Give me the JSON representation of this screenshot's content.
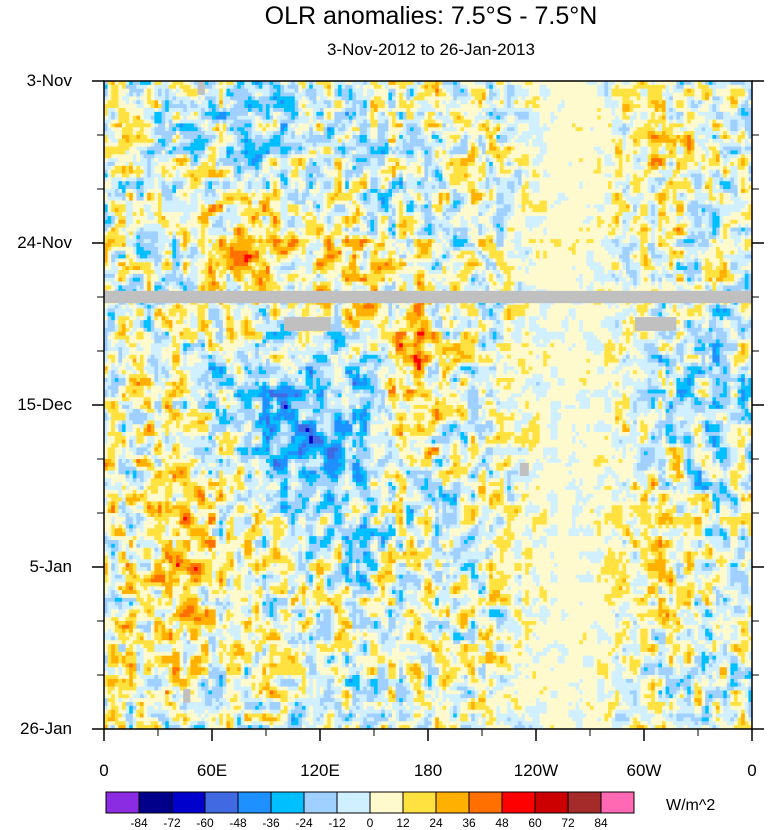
{
  "chart_data": {
    "type": "heatmap",
    "title": "OLR anomalies: 7.5°S - 7.5°N",
    "subtitle": "3-Nov-2012 to 26-Jan-2013",
    "x_tick_labels": [
      "0",
      "60E",
      "120E",
      "180",
      "120W",
      "60W",
      "0"
    ],
    "x_range_deg_east": [
      0,
      360
    ],
    "y_tick_labels": [
      "3-Nov",
      "24-Nov",
      "15-Dec",
      "5-Jan",
      "26-Jan"
    ],
    "y_range_days": [
      0,
      84
    ],
    "color_levels": [
      -84,
      -72,
      -60,
      -48,
      -36,
      -24,
      -12,
      0,
      12,
      24,
      36,
      48,
      60,
      72,
      84
    ],
    "color_level_labels": [
      "-84",
      "-72",
      "-60",
      "-48",
      "-36",
      "-24",
      "-12",
      "0",
      "12",
      "24",
      "36",
      "48",
      "60",
      "72",
      "84"
    ],
    "colors": [
      "#8b2be2",
      "#00008b",
      "#0000cd",
      "#4169e1",
      "#1e90ff",
      "#00bfff",
      "#a0d0ff",
      "#d0f0ff",
      "#fffacd",
      "#ffe140",
      "#ffb000",
      "#ff7000",
      "#ff0000",
      "#cc0000",
      "#a52a2a",
      "#ff69b4"
    ],
    "units": "W/m^2",
    "missing_color": "#c0c0c0",
    "missing_days": [
      28
    ]
  }
}
